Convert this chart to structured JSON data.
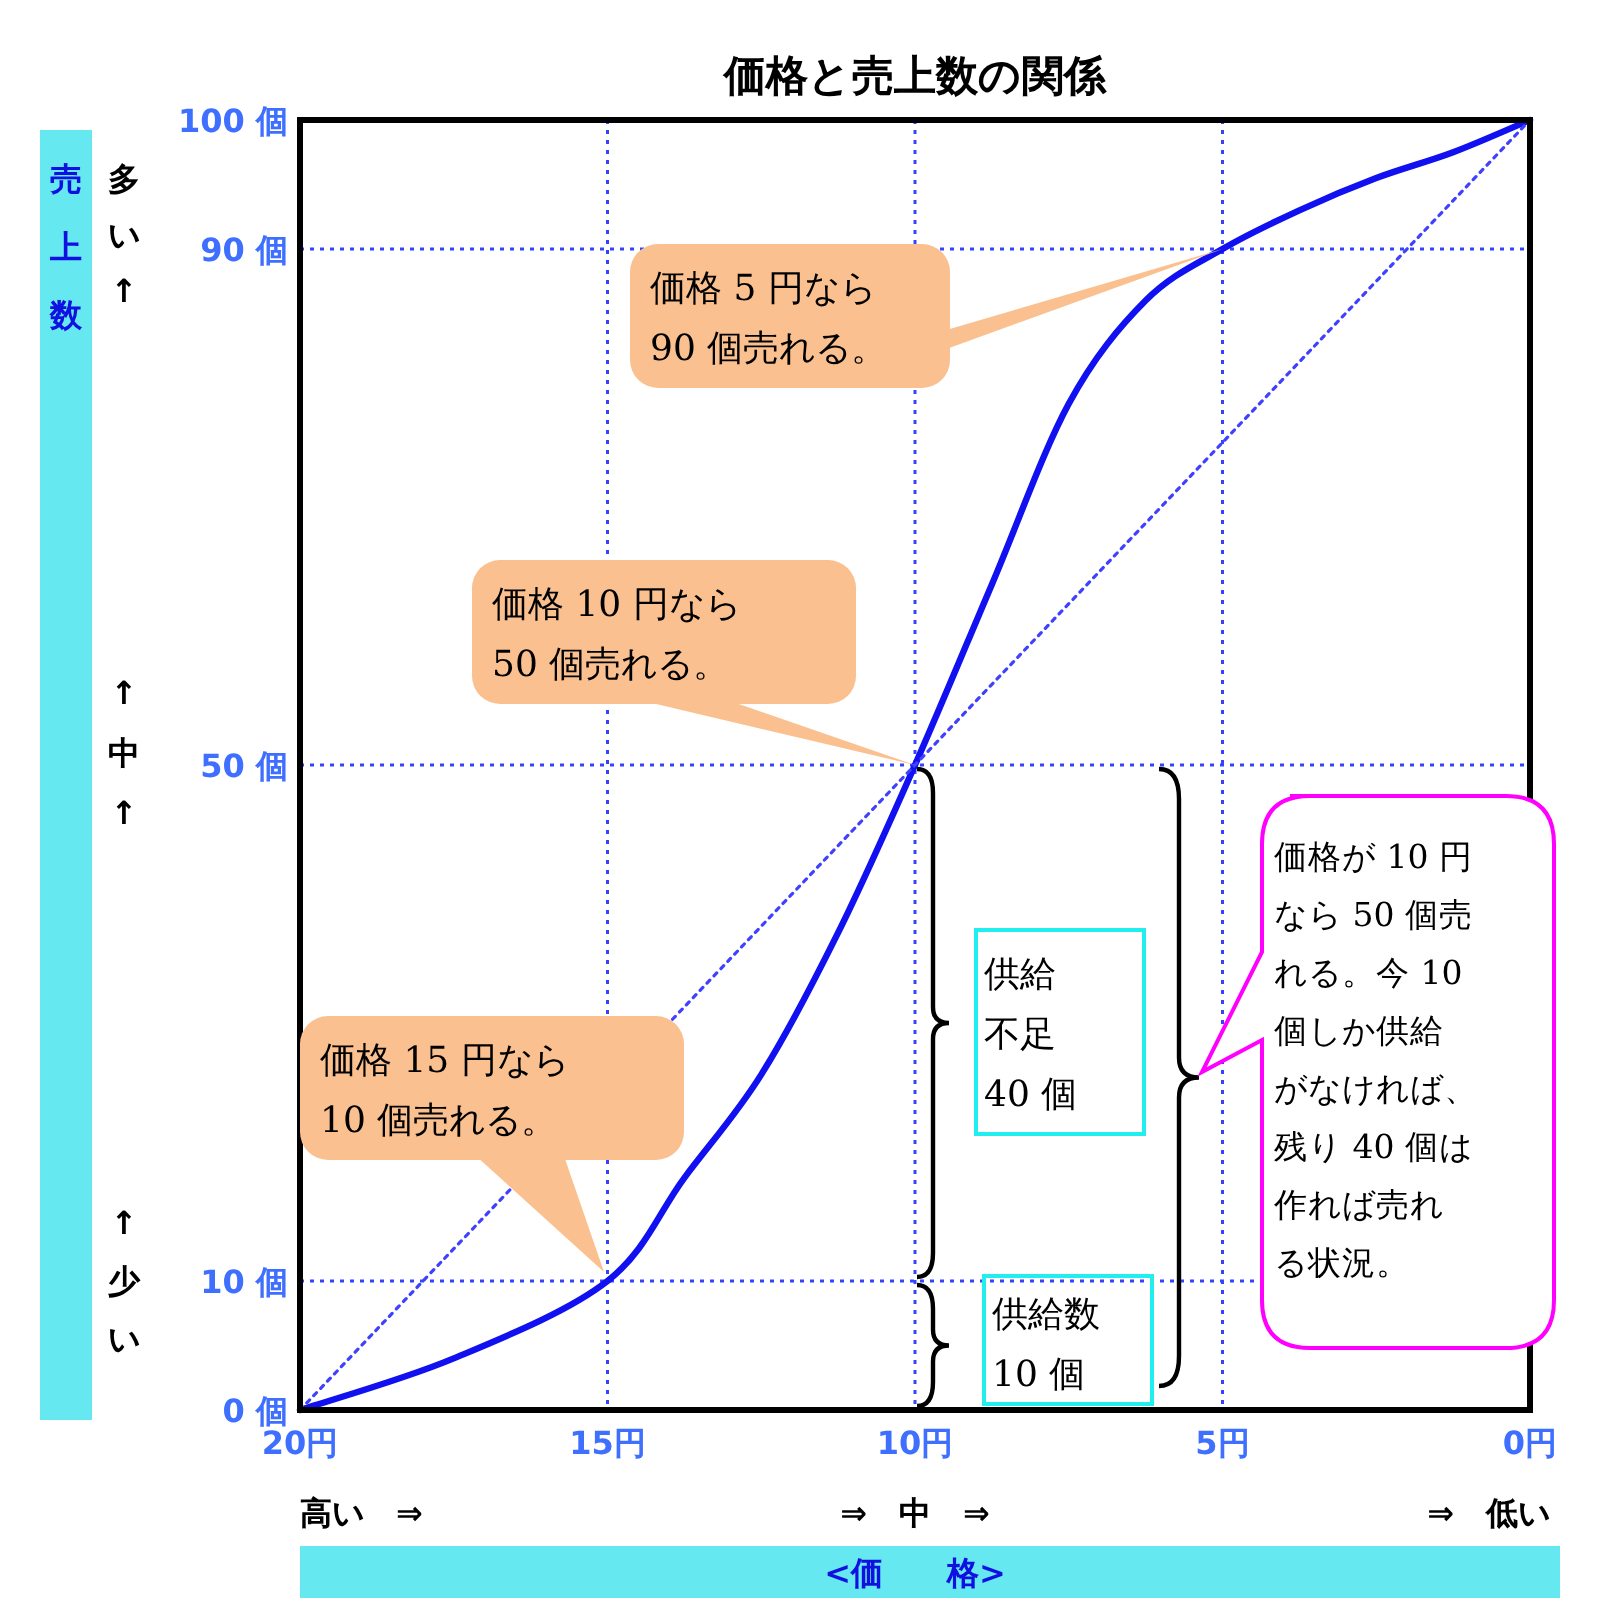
{
  "chart_data": {
    "type": "line",
    "title": "価格と売上数の関係",
    "xlabel": "<価　　格>",
    "ylabel": "売上数",
    "xlim": [
      20,
      0
    ],
    "ylim": [
      0,
      100
    ],
    "xticks": [
      {
        "value": 20,
        "label": "20円"
      },
      {
        "value": 15,
        "label": "15円"
      },
      {
        "value": 10,
        "label": "10円"
      },
      {
        "value": 5,
        "label": "5円"
      },
      {
        "value": 0,
        "label": "0円"
      }
    ],
    "yticks": [
      {
        "value": 0,
        "label": "0 個"
      },
      {
        "value": 10,
        "label": "10 個"
      },
      {
        "value": 50,
        "label": "50 個"
      },
      {
        "value": 90,
        "label": "90 個"
      },
      {
        "value": 100,
        "label": "100 個"
      }
    ],
    "grid": true,
    "series": [
      {
        "color": "#1010f0",
        "line_style": "solid",
        "x": [
          20,
          17.5,
          15,
          13.75,
          12.5,
          11.25,
          10,
          8.75,
          7.5,
          6.25,
          5,
          3.75,
          2.5,
          1.25,
          0
        ],
        "values": [
          0,
          4,
          10,
          18,
          26,
          37,
          50,
          64,
          78,
          86,
          90,
          93,
          95.5,
          97.5,
          100
        ]
      },
      {
        "color": "#4040ff",
        "line_style": "dotted",
        "x": [
          20,
          0
        ],
        "values": [
          0,
          100
        ]
      }
    ],
    "annotations": [
      {
        "text": "価格 5 円なら90 個売れる。",
        "x": 5,
        "y": 90
      },
      {
        "text": "価格 10 円なら50 個売れる。",
        "x": 10,
        "y": 50
      },
      "価格 15 円なら10 個売れる。",
      "供給不足40 個",
      "供給数10 個",
      "価格が 10 円なら 50 個売れる。今 10個しか供給がなければ、残り 40 個は作れば売れる状況。",
      "多い↑",
      "↑中↑",
      "↑少い",
      "高い　⇒",
      "⇒　中　⇒",
      "⇒　低い"
    ]
  }
}
